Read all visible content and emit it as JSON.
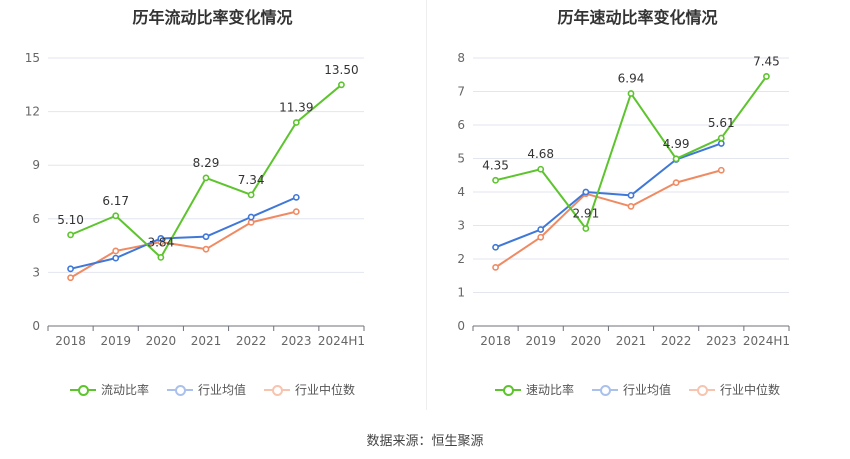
{
  "source_label": "数据来源：恒生聚源",
  "legend": {
    "left": [
      "流动比率",
      "行业均值",
      "行业中位数"
    ],
    "right": [
      "速动比率",
      "行业均值",
      "行业中位数"
    ]
  },
  "colors": {
    "company": "#5dc42e",
    "industry_avg": "#3f78d8",
    "industry_median": "#f08a62"
  },
  "chart_data": [
    {
      "type": "line",
      "title": "历年流动比率变化情况",
      "categories": [
        "2018",
        "2019",
        "2020",
        "2021",
        "2022",
        "2023",
        "2024H1"
      ],
      "ylim": [
        0,
        15
      ],
      "yticks": [
        0,
        3,
        6,
        9,
        12,
        15
      ],
      "series": [
        {
          "name": "流动比率",
          "values": [
            5.1,
            6.17,
            3.84,
            8.29,
            7.34,
            11.39,
            13.5
          ],
          "labels": [
            "5.10",
            "6.17",
            "3.84",
            "8.29",
            "7.34",
            "11.39",
            "13.50"
          ]
        },
        {
          "name": "行业均值",
          "values": [
            3.2,
            3.8,
            4.9,
            5.0,
            6.1,
            7.2,
            null
          ]
        },
        {
          "name": "行业中位数",
          "values": [
            2.7,
            4.2,
            4.7,
            4.3,
            5.8,
            6.4,
            null
          ]
        }
      ]
    },
    {
      "type": "line",
      "title": "历年速动比率变化情况",
      "categories": [
        "2018",
        "2019",
        "2020",
        "2021",
        "2022",
        "2023",
        "2024H1"
      ],
      "ylim": [
        0,
        8
      ],
      "yticks": [
        0,
        1,
        2,
        3,
        4,
        5,
        6,
        7,
        8
      ],
      "series": [
        {
          "name": "速动比率",
          "values": [
            4.35,
            4.68,
            2.91,
            6.94,
            4.99,
            5.61,
            7.45
          ],
          "labels": [
            "4.35",
            "4.68",
            "2.91",
            "6.94",
            "4.99",
            "5.61",
            "7.45"
          ]
        },
        {
          "name": "行业均值",
          "values": [
            2.35,
            2.88,
            4.0,
            3.9,
            4.97,
            5.45,
            null
          ]
        },
        {
          "name": "行业中位数",
          "values": [
            1.75,
            2.65,
            3.95,
            3.57,
            4.28,
            4.65,
            null
          ]
        }
      ]
    }
  ]
}
